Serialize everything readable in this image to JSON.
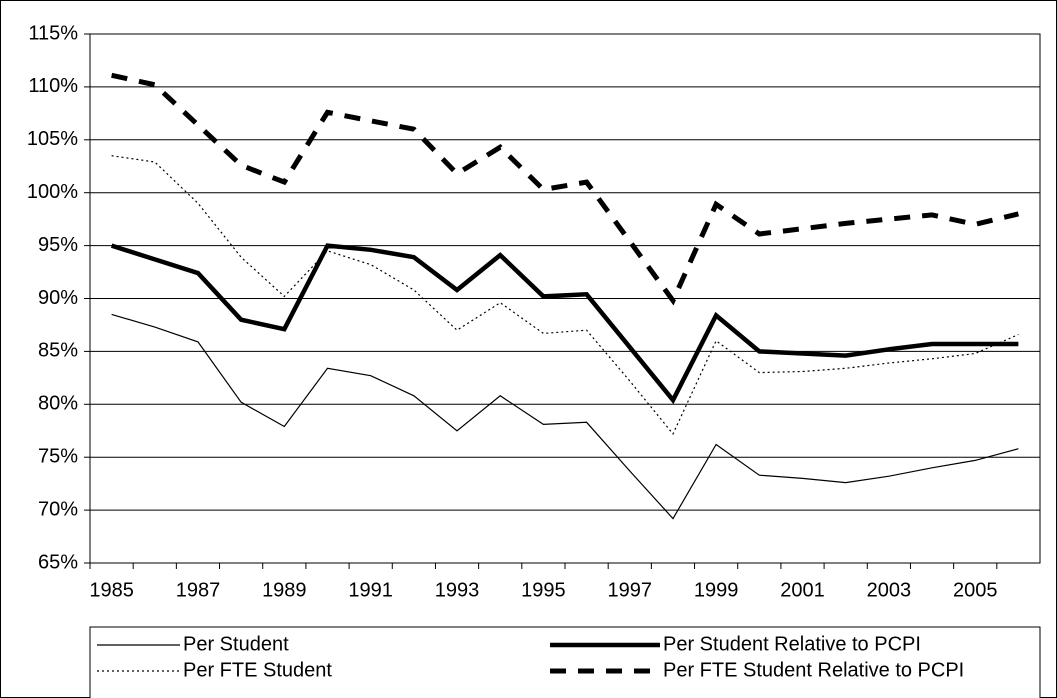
{
  "chart_data": {
    "type": "line",
    "categories": [
      "1985",
      null,
      "1987",
      null,
      "1989",
      null,
      "1991",
      null,
      "1993",
      null,
      "1995",
      null,
      "1997",
      null,
      "1999",
      null,
      "2001",
      null,
      "2003",
      null,
      "2005",
      null
    ],
    "ylim": [
      65,
      115
    ],
    "yticks": [
      {
        "value": 65,
        "label": "65%"
      },
      {
        "value": 70,
        "label": "70%"
      },
      {
        "value": 75,
        "label": "75%"
      },
      {
        "value": 80,
        "label": "80%"
      },
      {
        "value": 85,
        "label": "85%"
      },
      {
        "value": 90,
        "label": "90%"
      },
      {
        "value": 95,
        "label": "95%"
      },
      {
        "value": 100,
        "label": "100%"
      },
      {
        "value": 105,
        "label": "105%"
      },
      {
        "value": 110,
        "label": "110%"
      },
      {
        "value": 115,
        "label": "115%"
      }
    ],
    "grid": true,
    "legend": "bottom",
    "series": [
      {
        "name": "Per Student",
        "color": "#000000",
        "style": "solid",
        "line_width": 1.2,
        "values": [
          88.5,
          87.3,
          85.9,
          80.2,
          77.9,
          83.4,
          82.7,
          80.8,
          77.5,
          80.8,
          78.1,
          78.3,
          73.7,
          69.2,
          76.2,
          73.3,
          73.0,
          72.6,
          73.2,
          74.0,
          74.7,
          75.8
        ]
      },
      {
        "name": "Per Student Relative to PCPI",
        "color": "#000000",
        "style": "solid",
        "line_width": 4.5,
        "values": [
          95.0,
          93.7,
          92.4,
          88.0,
          87.1,
          95.0,
          94.6,
          93.9,
          90.8,
          94.1,
          90.2,
          90.4,
          85.4,
          80.4,
          88.4,
          85.0,
          84.8,
          84.6,
          85.2,
          85.7,
          85.7,
          85.7
        ]
      },
      {
        "name": "Per FTE Student",
        "color": "#000000",
        "style": "dotted",
        "line_width": 1.2,
        "values": [
          103.5,
          102.9,
          99.0,
          93.9,
          90.2,
          94.5,
          93.2,
          90.8,
          87.0,
          89.6,
          86.7,
          87.0,
          82.2,
          77.2,
          86.0,
          83.0,
          83.1,
          83.4,
          83.9,
          84.3,
          84.8,
          86.6
        ]
      },
      {
        "name": "Per FTE Student Relative to PCPI",
        "color": "#000000",
        "style": "dashed",
        "line_width": 5,
        "values": [
          111.1,
          110.2,
          106.4,
          102.6,
          101.0,
          107.6,
          106.8,
          106.0,
          101.8,
          104.3,
          100.3,
          101.0,
          95.4,
          89.8,
          98.9,
          96.1,
          96.6,
          97.1,
          97.5,
          97.9,
          97.0,
          98.0
        ]
      }
    ]
  }
}
